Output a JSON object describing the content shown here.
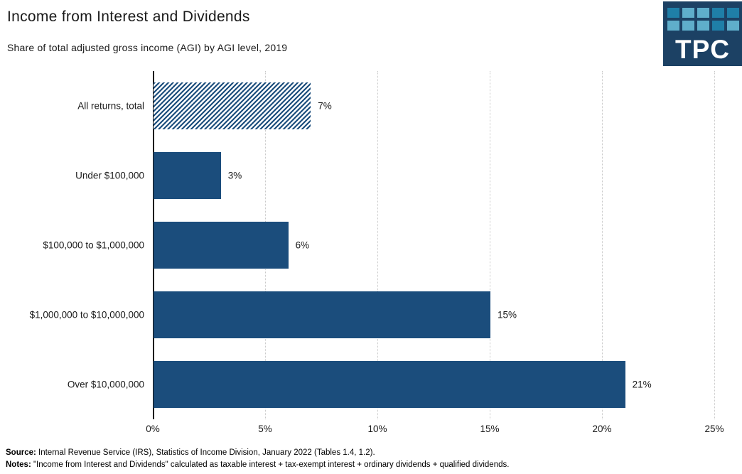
{
  "header": {
    "title": "Income from Interest and Dividends",
    "subtitle": "Share of total adjusted gross income (AGI) by AGI level, 2019"
  },
  "logo": {
    "text": "TPC",
    "bg_color": "#1c4164",
    "square_colors": {
      "dark": "#1f7fa8",
      "light": "#5faecb"
    },
    "square_pattern": [
      [
        "dark",
        "light",
        "light",
        "dark",
        "dark"
      ],
      [
        "light",
        "light",
        "light",
        "dark",
        "light"
      ]
    ]
  },
  "chart_data": {
    "type": "bar",
    "orientation": "horizontal",
    "title": "Income from Interest and Dividends",
    "subtitle": "Share of total adjusted gross income (AGI) by AGI level, 2019",
    "categories": [
      "All returns, total",
      "Under $100,000",
      "$100,000 to $1,000,000",
      "$1,000,000 to $10,000,000",
      "Over $10,000,000"
    ],
    "values": [
      7,
      3,
      6,
      15,
      21
    ],
    "value_labels": [
      "7%",
      "3%",
      "6%",
      "15%",
      "21%"
    ],
    "hatched_category_index": 0,
    "bar_color": "#1b4d7c",
    "hatch_background": "#ffffff",
    "xlabel": "",
    "ylabel": "",
    "xlim": [
      0,
      25
    ],
    "x_tick_values": [
      0,
      5,
      10,
      15,
      20,
      25
    ],
    "x_tick_labels": [
      "0%",
      "5%",
      "10%",
      "15%",
      "20%",
      "25%"
    ],
    "grid": "vertical-dotted",
    "legend": "none"
  },
  "footer": {
    "source_label": "Source:",
    "source_text": " Internal Revenue Service (IRS), Statistics of Income Division, January 2022 (Tables 1.4, 1.2).",
    "notes_label": "Notes:",
    "notes_text": " \"Income from Interest and Dividends\" calculated as taxable interest + tax-exempt interest + ordinary dividends + qualified dividends."
  }
}
